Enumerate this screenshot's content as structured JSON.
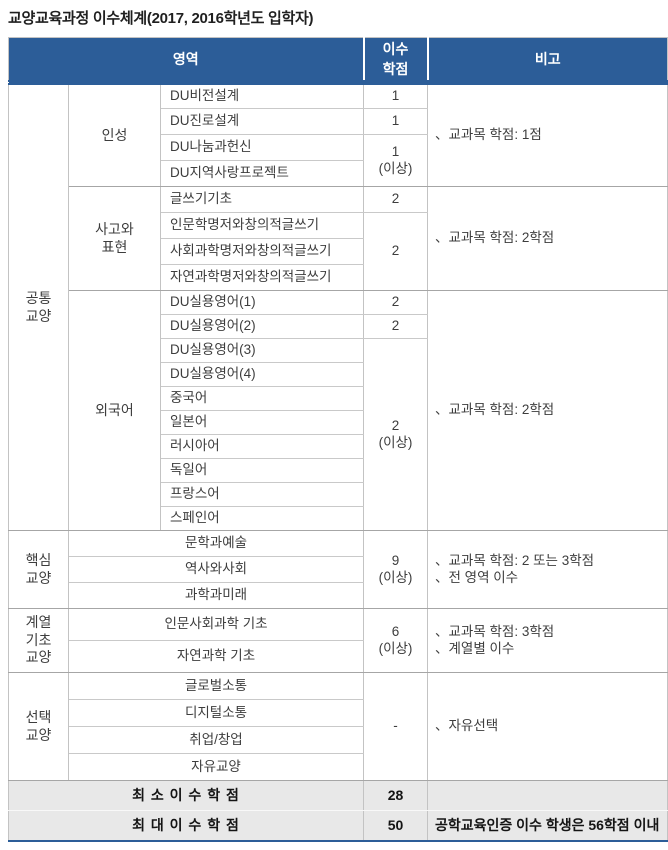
{
  "title": "교양교육과정 이수체계(2017, 2016학년도 입학자)",
  "colors": {
    "header_bg": "#2c5d98",
    "header_text": "#ffffff",
    "footer_bg": "#e8e8e8",
    "section_border": "#a6a6a6",
    "row_border": "#c9c9c9",
    "bottom_rule": "#2c5d98"
  },
  "header": {
    "area": "영역",
    "credits": "이수\n학점",
    "note": "비고"
  },
  "common": {
    "label": "공통\n교양",
    "character": {
      "label": "인성",
      "courses": [
        "DU비전설계",
        "DU진로설계",
        "DU나눔과헌신",
        "DU지역사랑프로젝트"
      ],
      "credits": [
        "1",
        "1",
        "1\n(이상)"
      ],
      "note": "、교과목 학점: 1점"
    },
    "thinking": {
      "label": "사고와\n표현",
      "courses": [
        "글쓰기기초",
        "인문학명저와창의적글쓰기",
        "사회과학명저와창의적글쓰기",
        "자연과학명저와창의적글쓰기"
      ],
      "credits": [
        "2",
        "2"
      ],
      "note": "、교과목 학점: 2학점"
    },
    "foreign": {
      "label": "외국어",
      "courses": [
        "DU실용영어(1)",
        "DU실용영어(2)",
        "DU실용영어(3)",
        "DU실용영어(4)",
        "중국어",
        "일본어",
        "러시아어",
        "독일어",
        "프랑스어",
        "스페인어"
      ],
      "credits": [
        "2",
        "2",
        "2\n(이상)"
      ],
      "note": "、교과목 학점: 2학점"
    }
  },
  "core": {
    "label": "핵심\n교양",
    "courses": [
      "문학과예술",
      "역사와사회",
      "과학과미래"
    ],
    "credits": "9\n(이상)",
    "note": "、교과목 학점: 2 또는 3학점\n、전 영역 이수"
  },
  "field": {
    "label": "계열\n기초\n교양",
    "courses": [
      "인문사회과학 기초",
      "자연과학 기초"
    ],
    "credits": "6\n(이상)",
    "note": "、교과목 학점: 3학점\n、계열별 이수"
  },
  "elective": {
    "label": "선택\n교양",
    "courses": [
      "글로벌소통",
      "디지털소통",
      "취업/창업",
      "자유교양"
    ],
    "credits": "-",
    "note": "、자유선택"
  },
  "footer": {
    "min_label": "최 소 이 수 학 점",
    "min_value": "28",
    "min_note": "",
    "max_label": "최 대 이 수 학 점",
    "max_value": "50",
    "max_note": "공학교육인증 이수 학생은 56학점 이내"
  }
}
